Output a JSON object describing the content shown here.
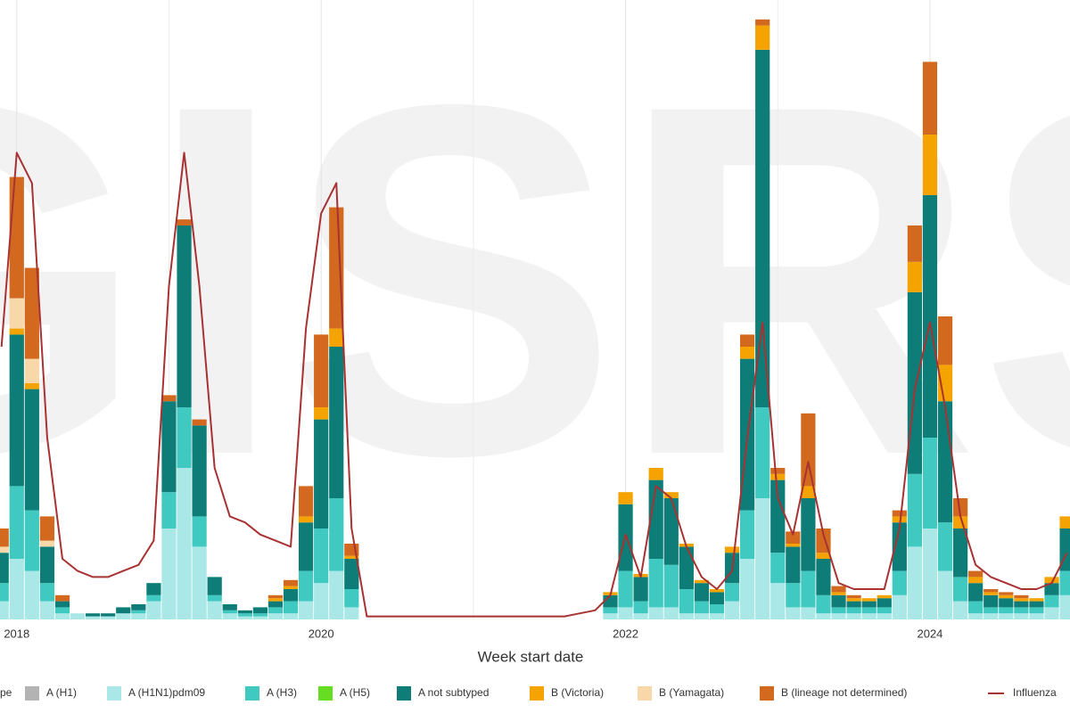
{
  "chart_data": {
    "type": "bar",
    "stacked": true,
    "watermark": "GISRS",
    "xlabel": "Week start date",
    "legend_title": "pe",
    "xlim": [
      2017.89,
      2024.92
    ],
    "ylim": [
      0,
      100
    ],
    "xticks": [
      2018,
      2020,
      2022,
      2024
    ],
    "minor_xticks": [
      2019,
      2021,
      2023
    ],
    "grid": true,
    "x": [
      2017.9,
      2018.0,
      2018.1,
      2018.2,
      2018.3,
      2018.4,
      2018.5,
      2018.6,
      2018.7,
      2018.8,
      2018.9,
      2019.0,
      2019.1,
      2019.2,
      2019.3,
      2019.4,
      2019.5,
      2019.6,
      2019.7,
      2019.8,
      2019.9,
      2020.0,
      2020.1,
      2020.2,
      2020.3,
      2020.4,
      2020.5,
      2020.6,
      2020.7,
      2020.8,
      2020.9,
      2021.0,
      2021.1,
      2021.2,
      2021.3,
      2021.4,
      2021.5,
      2021.6,
      2021.7,
      2021.8,
      2021.9,
      2022.0,
      2022.1,
      2022.2,
      2022.3,
      2022.4,
      2022.5,
      2022.6,
      2022.7,
      2022.8,
      2022.9,
      2023.0,
      2023.1,
      2023.2,
      2023.3,
      2023.4,
      2023.5,
      2023.6,
      2023.7,
      2023.8,
      2023.9,
      2024.0,
      2024.1,
      2024.2,
      2024.3,
      2024.4,
      2024.5,
      2024.6,
      2024.7,
      2024.8,
      2024.9
    ],
    "series": [
      {
        "name": "A (H1)",
        "color": "#b3b3b3",
        "values": [
          0,
          0,
          0,
          0,
          0,
          0,
          0,
          0,
          0,
          0,
          0,
          0,
          0,
          0,
          0,
          0,
          0,
          0,
          0,
          0,
          0,
          0,
          0,
          0,
          0,
          0,
          0,
          0,
          0,
          0,
          0,
          0,
          0,
          0,
          0,
          0,
          0,
          0,
          0,
          0,
          0,
          0,
          0,
          0,
          0,
          0,
          0,
          0,
          0,
          0,
          0,
          0,
          0,
          0,
          0,
          0,
          0,
          0,
          0,
          0,
          0,
          0,
          0,
          0,
          0,
          0,
          0,
          0,
          0,
          0,
          0
        ]
      },
      {
        "name": "A (H1N1)pdm09",
        "color": "#a9e8e6",
        "values": [
          3,
          10,
          8,
          3,
          1,
          1,
          0.5,
          0.5,
          1,
          1,
          3,
          15,
          25,
          12,
          3,
          1,
          0.5,
          0.5,
          1,
          1,
          3,
          6,
          8,
          2,
          0,
          0,
          0,
          0,
          0,
          0,
          0,
          0,
          0,
          0,
          0,
          0,
          0,
          0,
          0,
          0,
          1,
          2,
          1,
          2,
          2,
          1,
          1,
          1,
          3,
          10,
          20,
          6,
          2,
          2,
          1,
          1,
          1,
          1,
          1,
          4,
          12,
          15,
          8,
          3,
          1,
          1,
          1,
          1,
          1,
          2,
          4
        ]
      },
      {
        "name": "A (H3)",
        "color": "#3fc9c0",
        "values": [
          3,
          12,
          10,
          3,
          1,
          0,
          0,
          0,
          0,
          0.5,
          1,
          6,
          10,
          5,
          1,
          0.5,
          0.5,
          0.5,
          1,
          2,
          5,
          9,
          12,
          3,
          0,
          0,
          0,
          0,
          0,
          0,
          0,
          0,
          0,
          0,
          0,
          0,
          0,
          0,
          0,
          0,
          1,
          6,
          2,
          8,
          7,
          4,
          2,
          1.5,
          3,
          8,
          15,
          5,
          4,
          6,
          3,
          1,
          1,
          1,
          1,
          4,
          12,
          15,
          8,
          4,
          2,
          1,
          1,
          1,
          1,
          2,
          4
        ]
      },
      {
        "name": "A (H5)",
        "color": "#66dd22",
        "values": [
          0,
          0,
          0,
          0,
          0,
          0,
          0,
          0,
          0,
          0,
          0,
          0,
          0,
          0,
          0,
          0,
          0,
          0,
          0,
          0,
          0,
          0,
          0,
          0,
          0,
          0,
          0,
          0,
          0,
          0,
          0,
          0,
          0,
          0,
          0,
          0,
          0,
          0,
          0,
          0,
          0,
          0,
          0,
          0,
          0,
          0,
          0,
          0,
          0,
          0,
          0,
          0,
          0,
          0,
          0,
          0,
          0,
          0,
          0,
          0,
          0,
          0,
          0,
          0,
          0,
          0,
          0,
          0,
          0,
          0,
          0
        ]
      },
      {
        "name": "A not subtyped",
        "color": "#0e7d78",
        "values": [
          5,
          25,
          20,
          6,
          1,
          0,
          0.5,
          0.5,
          1,
          1,
          2,
          15,
          30,
          15,
          3,
          1,
          0.5,
          1,
          1,
          2,
          8,
          18,
          25,
          5,
          0,
          0,
          0,
          0,
          0,
          0,
          0,
          0,
          0,
          0,
          0,
          0,
          0,
          0,
          0,
          0,
          2,
          11,
          4,
          13,
          11,
          7,
          3,
          2,
          5,
          25,
          59,
          12,
          6,
          12,
          6,
          2,
          1,
          1,
          1.5,
          8,
          30,
          40,
          20,
          8,
          3,
          2,
          1.5,
          1,
          1,
          2,
          7
        ]
      },
      {
        "name": "B (Victoria)",
        "color": "#f5a300",
        "values": [
          0,
          1,
          1,
          0,
          0,
          0,
          0,
          0,
          0,
          0,
          0,
          0,
          0,
          0,
          0,
          0,
          0,
          0,
          0.5,
          0.5,
          1,
          2,
          3,
          0.5,
          0,
          0,
          0,
          0,
          0,
          0,
          0,
          0,
          0,
          0,
          0,
          0,
          0,
          0,
          0,
          0,
          0.5,
          2,
          0.5,
          2,
          1,
          0.5,
          0.5,
          0.5,
          1,
          2,
          4,
          1,
          0.5,
          2,
          1,
          0.5,
          0.5,
          0.5,
          0.5,
          1,
          5,
          10,
          6,
          2,
          1,
          0.5,
          0.5,
          0.5,
          0.5,
          1,
          2
        ]
      },
      {
        "name": "B (Yamagata)",
        "color": "#f8d7a8",
        "values": [
          1,
          5,
          4,
          1,
          0,
          0,
          0,
          0,
          0,
          0,
          0,
          0,
          0,
          0,
          0,
          0,
          0,
          0,
          0,
          0,
          0,
          0,
          0,
          0,
          0,
          0,
          0,
          0,
          0,
          0,
          0,
          0,
          0,
          0,
          0,
          0,
          0,
          0,
          0,
          0,
          0,
          0,
          0,
          0,
          0,
          0,
          0,
          0,
          0,
          0,
          0,
          0,
          0,
          0,
          0,
          0,
          0,
          0,
          0,
          0,
          0,
          0,
          0,
          0,
          0,
          0,
          0,
          0,
          0,
          0,
          0
        ]
      },
      {
        "name": "B (lineage not determined)",
        "color": "#d2691e",
        "values": [
          3,
          20,
          15,
          4,
          1,
          0,
          0,
          0,
          0,
          0,
          0,
          1,
          1,
          1,
          0,
          0,
          0,
          0,
          0.5,
          1,
          5,
          12,
          20,
          2,
          0,
          0,
          0,
          0,
          0,
          0,
          0,
          0,
          0,
          0,
          0,
          0,
          0,
          0,
          0,
          0,
          0,
          0,
          0,
          0,
          0,
          0,
          0,
          0,
          0,
          2,
          1,
          1,
          2,
          12,
          4,
          1,
          0.5,
          0,
          0,
          1,
          6,
          12,
          8,
          3,
          1,
          0.5,
          0.5,
          0.5,
          0,
          0,
          0
        ]
      }
    ],
    "line": {
      "name": "Influenza",
      "color": "#a83232",
      "values": [
        45,
        77,
        72,
        30,
        10,
        8,
        7,
        7,
        8,
        9,
        13,
        55,
        77,
        55,
        25,
        17,
        16,
        14,
        13,
        12,
        48,
        67,
        72,
        15,
        0.5,
        0.5,
        0.5,
        0.5,
        0.5,
        0.5,
        0.5,
        0.5,
        0.5,
        0.5,
        0.5,
        0.5,
        0.5,
        0.5,
        1,
        1.5,
        4,
        14,
        7,
        22,
        20,
        12,
        7,
        5,
        8,
        30,
        49,
        20,
        14,
        26,
        14,
        6,
        5,
        5,
        5,
        15,
        38,
        49,
        35,
        17,
        9,
        7,
        6,
        5,
        5,
        6,
        11
      ]
    }
  }
}
